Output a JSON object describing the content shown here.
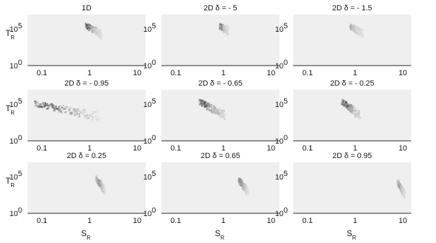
{
  "chart_data": {
    "type": "heatmap",
    "xscale": "log",
    "yscale": "log",
    "xlim": [
      0.05,
      15
    ],
    "ylim": [
      1,
      10000000
    ],
    "xticks": [
      0.1,
      1,
      10
    ],
    "xtick_labels": [
      "0.1",
      "1",
      "10"
    ],
    "yticks": [
      1,
      100000
    ],
    "ytick_labels": [
      {
        "base": "10",
        "exp": "0"
      },
      {
        "base": "10",
        "exp": "5"
      }
    ],
    "xlabel": {
      "main": "S",
      "sub": "R"
    },
    "ylabel": {
      "main": "T",
      "sub": "R"
    },
    "colormap": [
      "#eeeeee",
      "#1a1a1a"
    ],
    "panels": [
      {
        "title": "1D",
        "clusters": [
          {
            "s_min": 0.8,
            "s_max": 1.7,
            "t_at_smin": 400000,
            "t_at_smax": 25000,
            "peak_s": 0.85,
            "intensity": 0.8
          }
        ]
      },
      {
        "title": "2D δ = - 5",
        "clusters": [
          {
            "s_min": 0.8,
            "s_max": 1.2,
            "t_at_smin": 350000,
            "t_at_smax": 80000,
            "peak_s": 0.85,
            "intensity": 0.65
          }
        ]
      },
      {
        "title": "2D δ = - 1.5",
        "clusters": [
          {
            "s_min": 0.75,
            "s_max": 1.4,
            "t_at_smin": 300000,
            "t_at_smax": 30000,
            "peak_s": 0.8,
            "intensity": 0.45
          }
        ]
      },
      {
        "title": "2D δ = - 0.95",
        "clusters": [
          {
            "s_min": 0.065,
            "s_max": 1.6,
            "t_at_smin": 200000,
            "t_at_smax": 2500,
            "peak_s": 0.12,
            "intensity": 0.9
          }
        ]
      },
      {
        "title": "2D δ = - 0.65",
        "clusters": [
          {
            "s_min": 0.3,
            "s_max": 1.1,
            "t_at_smin": 300000,
            "t_at_smax": 3000,
            "peak_s": 0.38,
            "intensity": 0.9
          }
        ]
      },
      {
        "title": "2D δ = - 0.25",
        "clusters": [
          {
            "s_min": 0.5,
            "s_max": 1.2,
            "t_at_smin": 300000,
            "t_at_smax": 4000,
            "peak_s": 0.6,
            "intensity": 0.9
          }
        ]
      },
      {
        "title": "2D δ = 0.25",
        "clusters": [
          {
            "s_min": 1.3,
            "s_max": 2.0,
            "t_at_smin": 80000,
            "t_at_smax": 1500,
            "peak_s": 1.5,
            "intensity": 0.55
          }
        ]
      },
      {
        "title": "2D δ = 0.65",
        "clusters": [
          {
            "s_min": 2.0,
            "s_max": 3.2,
            "t_at_smin": 50000,
            "t_at_smax": 1000,
            "peak_s": 2.2,
            "intensity": 0.65
          }
        ]
      },
      {
        "title": "2D δ = 0.95",
        "clusters": [
          {
            "s_min": 7.5,
            "s_max": 10.5,
            "t_at_smin": 20000,
            "t_at_smax": 500,
            "peak_s": 8.0,
            "intensity": 0.55
          }
        ]
      }
    ]
  }
}
